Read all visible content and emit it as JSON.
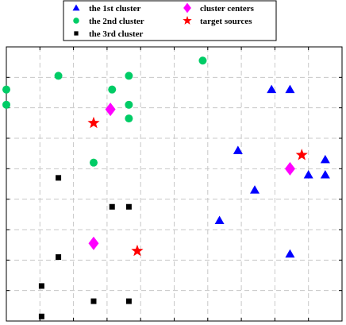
{
  "chart_data": {
    "type": "scatter",
    "title": "",
    "xlabel": "",
    "ylabel": "",
    "xlim": [
      0,
      10
    ],
    "ylim": [
      0,
      9
    ],
    "grid": true,
    "grid_style": "dashed",
    "legend": {
      "placement": "top-center",
      "columns": 2
    },
    "series": [
      {
        "name": "the 1st cluster",
        "marker": "triangle",
        "color": "#0000ff",
        "points": [
          [
            7.9,
            7.6
          ],
          [
            8.45,
            7.6
          ],
          [
            6.9,
            5.6
          ],
          [
            9.5,
            5.3
          ],
          [
            9.0,
            4.8
          ],
          [
            9.5,
            4.8
          ],
          [
            7.4,
            4.3
          ],
          [
            6.35,
            3.3
          ],
          [
            8.45,
            2.2
          ]
        ]
      },
      {
        "name": "the 2nd cluster",
        "marker": "circle",
        "color": "#00cc66",
        "points": [
          [
            5.85,
            8.55
          ],
          [
            1.55,
            8.05
          ],
          [
            3.65,
            8.05
          ],
          [
            0.0,
            7.6
          ],
          [
            3.15,
            7.6
          ],
          [
            0.0,
            7.1
          ],
          [
            3.65,
            7.1
          ],
          [
            3.65,
            6.65
          ],
          [
            2.6,
            5.2
          ]
        ]
      },
      {
        "name": "the 3rd cluster",
        "marker": "square",
        "color": "#000000",
        "points": [
          [
            1.55,
            4.7
          ],
          [
            3.15,
            3.75
          ],
          [
            3.65,
            3.75
          ],
          [
            1.55,
            2.1
          ],
          [
            1.05,
            1.15
          ],
          [
            2.6,
            0.65
          ],
          [
            3.65,
            0.65
          ],
          [
            1.05,
            0.15
          ]
        ]
      },
      {
        "name": "cluster centers",
        "marker": "diamond",
        "color": "#ff00ff",
        "points": [
          [
            3.1,
            6.95
          ],
          [
            8.45,
            5.0
          ],
          [
            2.6,
            2.55
          ]
        ]
      },
      {
        "name": "target sources",
        "marker": "star",
        "color": "#ff0000",
        "points": [
          [
            2.6,
            6.5
          ],
          [
            8.8,
            5.45
          ],
          [
            3.9,
            2.3
          ]
        ]
      }
    ]
  }
}
